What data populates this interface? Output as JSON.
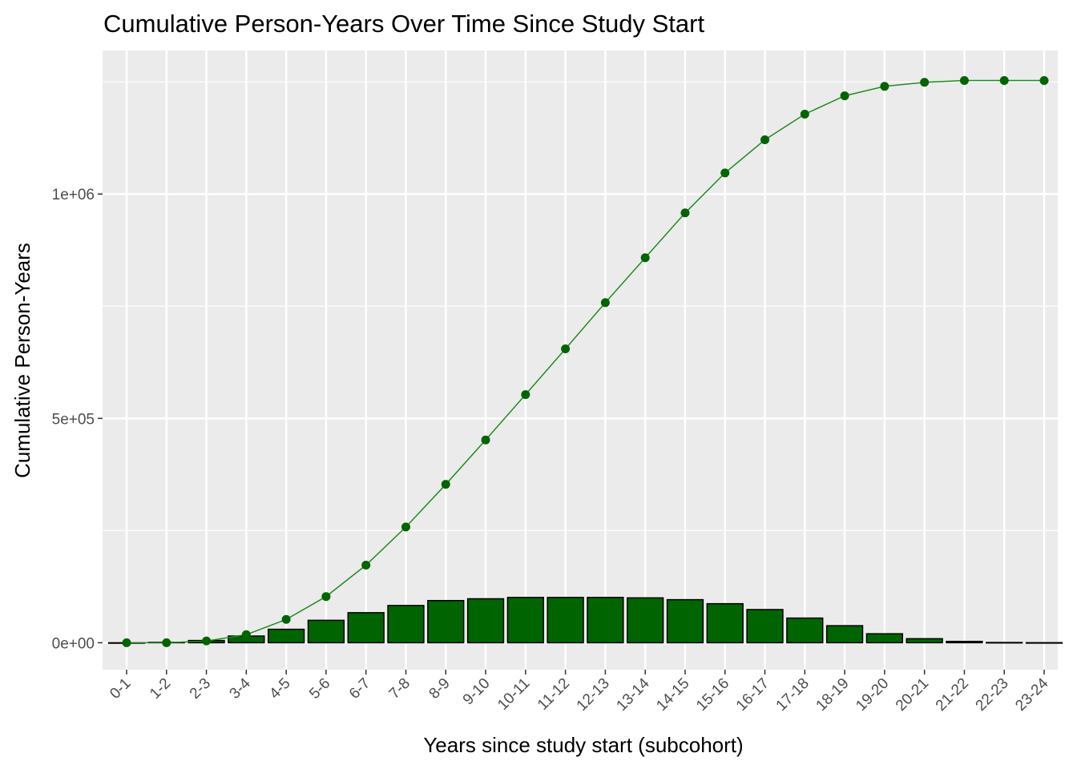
{
  "chart_data": {
    "type": "bar",
    "title": "Cumulative Person-Years Over Time Since Study Start",
    "xlabel": "Years since study start (subcohort)",
    "ylabel": "Cumulative Person-Years",
    "categories": [
      "0-1",
      "1-2",
      "2-3",
      "3-4",
      "4-5",
      "5-6",
      "6-7",
      "7-8",
      "8-9",
      "9-10",
      "10-11",
      "11-12",
      "12-13",
      "13-14",
      "14-15",
      "15-16",
      "16-17",
      "17-18",
      "18-19",
      "19-20",
      "20-21",
      "21-22",
      "22-23",
      "23-24"
    ],
    "series": [
      {
        "kind": "bar",
        "values": [
          0,
          1000,
          5000,
          15000,
          30000,
          50000,
          67000,
          83000,
          94000,
          98000,
          101000,
          101000,
          101000,
          100000,
          96000,
          87000,
          74000,
          55000,
          38000,
          20000,
          9000,
          3000,
          600,
          200
        ],
        "color": "#006400"
      },
      {
        "kind": "line",
        "values": [
          0,
          0,
          4000,
          18000,
          52000,
          103000,
          173000,
          258000,
          353000,
          452000,
          553000,
          655000,
          758000,
          858000,
          958000,
          1047000,
          1121000,
          1178000,
          1219000,
          1240000,
          1249000,
          1253000,
          1253000,
          1253000
        ],
        "color": "#006400"
      }
    ],
    "y_ticks": [
      "0e+00",
      "5e+05",
      "1e+06"
    ],
    "ylim": [
      -60000,
      1320000
    ],
    "grid": true,
    "panel_background": "#ebebeb"
  }
}
